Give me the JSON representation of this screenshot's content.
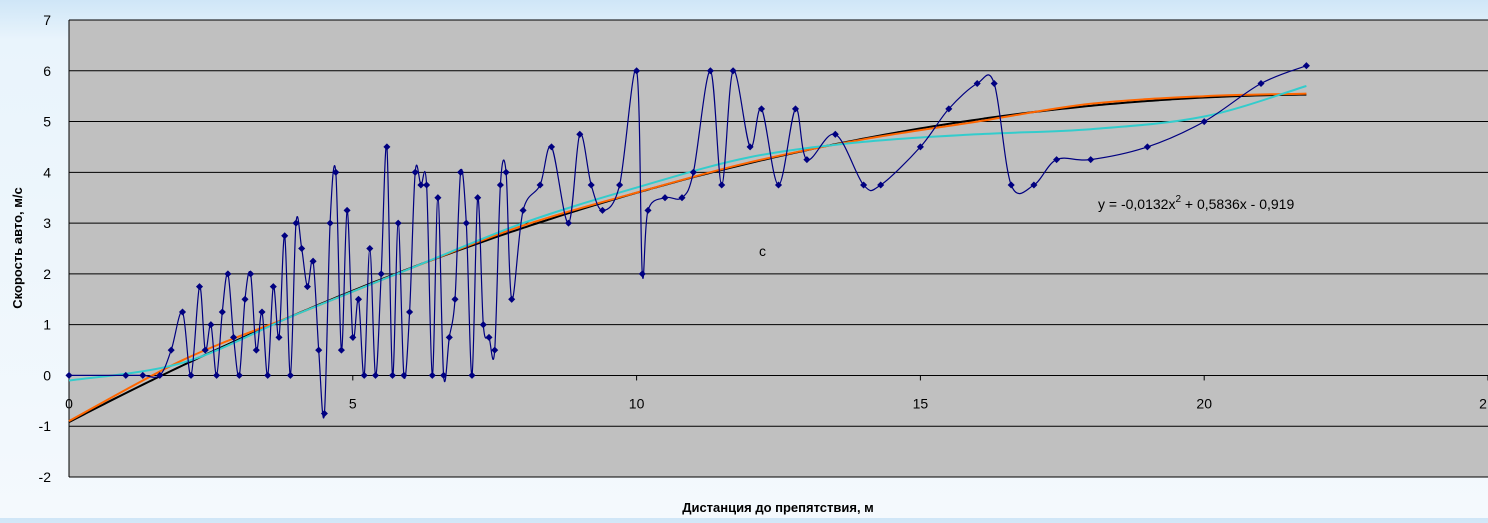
{
  "chart_data": {
    "type": "scatter",
    "title": "",
    "xlabel": "Дистанция до препятствия, м",
    "ylabel": "Скорость авто, м/с",
    "xlim": [
      0,
      25
    ],
    "ylim": [
      -2,
      7
    ],
    "xticks": [
      "0",
      "5",
      "10",
      "15",
      "20",
      "2"
    ],
    "yticks": [
      "7",
      "6",
      "5",
      "4",
      "3",
      "2",
      "1",
      "0",
      "-1",
      "-2"
    ],
    "grid": "horizontal",
    "plot_background": "#c0c0c0",
    "annotations": {
      "equation_main": "y = -0,0132x",
      "equation_sup": "2",
      "equation_rest": " + 0,5836x - 0,919",
      "letter": "c"
    },
    "series": [
      {
        "color": "#000080",
        "style": "smooth-line-with-markers",
        "x": [
          0,
          1.0,
          1.3,
          1.6,
          1.8,
          2.0,
          2.15,
          2.3,
          2.4,
          2.5,
          2.6,
          2.7,
          2.8,
          2.9,
          3.0,
          3.1,
          3.2,
          3.3,
          3.4,
          3.5,
          3.6,
          3.7,
          3.8,
          3.9,
          4.0,
          4.1,
          4.2,
          4.3,
          4.4,
          4.5,
          4.6,
          4.7,
          4.8,
          4.9,
          5.0,
          5.1,
          5.2,
          5.3,
          5.4,
          5.5,
          5.6,
          5.7,
          5.8,
          5.9,
          6.0,
          6.1,
          6.2,
          6.3,
          6.4,
          6.5,
          6.6,
          6.7,
          6.8,
          6.9,
          7.0,
          7.1,
          7.2,
          7.3,
          7.4,
          7.5,
          7.6,
          7.7,
          7.8,
          8.0,
          8.3,
          8.5,
          8.8,
          9.0,
          9.2,
          9.4,
          9.7,
          10.0,
          10.1,
          10.2,
          10.5,
          10.8,
          11.0,
          11.3,
          11.5,
          11.7,
          12.0,
          12.2,
          12.5,
          12.8,
          13.0,
          13.5,
          14.0,
          14.3,
          15.0,
          15.5,
          16.0,
          16.3,
          16.6,
          17.0,
          17.4,
          18.0,
          19.0,
          20.0,
          21.0,
          21.8
        ],
        "y": [
          0,
          0,
          0,
          0,
          0.5,
          1.25,
          0,
          1.75,
          0.5,
          1.0,
          0,
          1.25,
          2.0,
          0.75,
          0,
          1.5,
          2.0,
          0.5,
          1.25,
          0,
          1.75,
          0.75,
          2.75,
          0,
          3.0,
          2.5,
          1.75,
          2.25,
          0.5,
          -0.75,
          3.0,
          4.0,
          0.5,
          3.25,
          0.75,
          1.5,
          0,
          2.5,
          0,
          2.0,
          4.5,
          0,
          3.0,
          0,
          1.25,
          4.0,
          3.75,
          3.75,
          0,
          3.5,
          0,
          0.75,
          1.5,
          4.0,
          3.0,
          0,
          3.5,
          1.0,
          0.75,
          0.5,
          3.75,
          4.0,
          1.5,
          3.25,
          3.75,
          4.5,
          3.0,
          4.75,
          3.75,
          3.25,
          3.75,
          6.0,
          2.0,
          3.25,
          3.5,
          3.5,
          4.0,
          6.0,
          3.75,
          6.0,
          4.5,
          5.25,
          3.75,
          5.25,
          4.25,
          4.75,
          3.75,
          3.75,
          4.5,
          5.25,
          5.75,
          5.75,
          3.75,
          3.75,
          4.25,
          4.25,
          4.5,
          5.0,
          5.75,
          6.1
        ]
      },
      {
        "color": "#000000",
        "style": "poly2-trendline",
        "coef": [
          -0.0132,
          0.5836,
          -0.919
        ],
        "x": [
          0,
          21.8
        ]
      },
      {
        "color": "#ff6600",
        "style": "linear-trend",
        "x": [
          0,
          2,
          4,
          6,
          8,
          10,
          12,
          14,
          16,
          18,
          20,
          21.8
        ],
        "y": [
          -0.9,
          0.3,
          1.2,
          2.1,
          2.95,
          3.6,
          4.2,
          4.65,
          5.0,
          5.35,
          5.5,
          5.55
        ]
      },
      {
        "color": "#33cccc",
        "style": "poly3-trendline",
        "x": [
          0,
          2,
          4,
          6,
          8,
          10,
          12,
          14,
          16,
          18,
          20,
          21.8
        ],
        "y": [
          -0.1,
          0.25,
          1.2,
          2.1,
          3.0,
          3.7,
          4.3,
          4.6,
          4.75,
          4.85,
          5.1,
          5.7
        ]
      }
    ]
  }
}
